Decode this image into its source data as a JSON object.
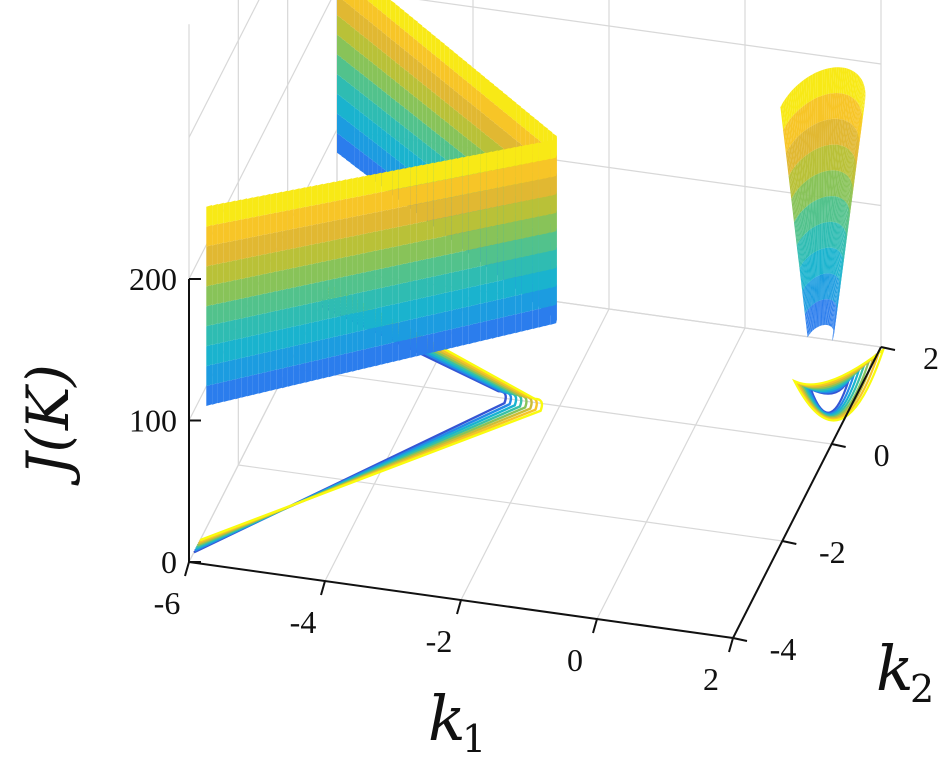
{
  "chart_data": {
    "type": "surface",
    "title": "",
    "xlabel": "k",
    "xlabel_sub": "1",
    "ylabel": "k",
    "ylabel_sub": "2",
    "zlabel": "J(K)",
    "xlim": [
      -6,
      2
    ],
    "ylim": [
      -4,
      2
    ],
    "zlim": [
      0,
      200
    ],
    "x_ticks": [
      "-6",
      "-4",
      "-2",
      "0",
      "2"
    ],
    "y_ticks": [
      "-4",
      "-2",
      "0",
      "2"
    ],
    "z_ticks": [
      "0",
      "100",
      "200"
    ],
    "x_tick_values": [
      -6,
      -4,
      -2,
      0,
      2
    ],
    "y_tick_values": [
      -4,
      -2,
      0,
      2
    ],
    "z_tick_values": [
      0,
      100,
      200
    ],
    "grid": true,
    "colormap": [
      "#3e26a8",
      "#2f74f1",
      "#12b0d8",
      "#3dc2a0",
      "#a8c43b",
      "#f6b42f",
      "#f9fb0e"
    ],
    "surfaces": [
      {
        "region": "left",
        "k1_range": [
          -6,
          -1.8
        ],
        "k2_range": [
          -4,
          2
        ],
        "z_range": [
          60,
          200
        ]
      },
      {
        "region": "right",
        "k1_range": [
          1.0,
          2.0
        ],
        "k2_range": [
          -1.5,
          2
        ],
        "z_range": [
          30,
          190
        ]
      }
    ],
    "contour_levels_projected": true
  }
}
